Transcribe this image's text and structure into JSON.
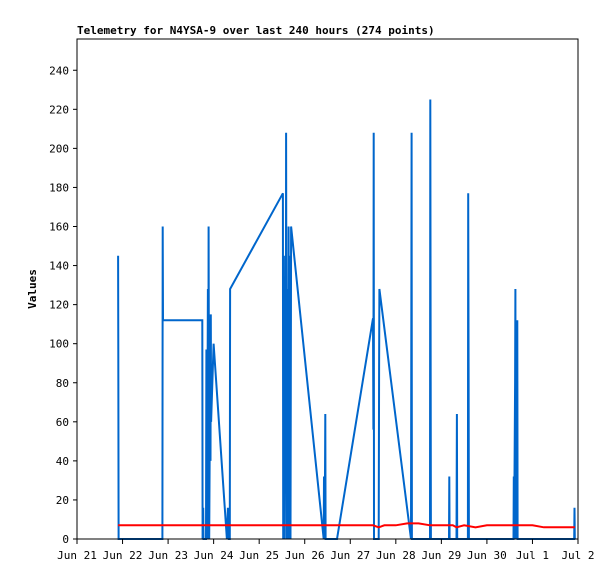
{
  "chart_data": {
    "type": "line",
    "title": "Telemetry for N4YSA-9 over last 240 hours (274 points)",
    "xlabel": "",
    "ylabel": "Values",
    "xlim": [
      "2024-06-21",
      "2024-07-02"
    ],
    "ylim": [
      0,
      256
    ],
    "grid": false,
    "legend": "none",
    "x_ticks": [
      {
        "date": "2024-06-21",
        "label": "Jun 21"
      },
      {
        "date": "2024-06-22",
        "label": "Jun 22"
      },
      {
        "date": "2024-06-23",
        "label": "Jun 23"
      },
      {
        "date": "2024-06-24",
        "label": "Jun 24"
      },
      {
        "date": "2024-06-25",
        "label": "Jun 25"
      },
      {
        "date": "2024-06-26",
        "label": "Jun 26"
      },
      {
        "date": "2024-06-27",
        "label": "Jun 27"
      },
      {
        "date": "2024-06-28",
        "label": "Jun 28"
      },
      {
        "date": "2024-06-29",
        "label": "Jun 29"
      },
      {
        "date": "2024-06-30",
        "label": "Jun 30"
      },
      {
        "date": "2024-07-01",
        "label": "Jul 1"
      },
      {
        "date": "2024-07-02",
        "label": "Jul 2"
      }
    ],
    "y_ticks": [
      0,
      20,
      40,
      60,
      80,
      100,
      120,
      140,
      160,
      180,
      200,
      220,
      240
    ],
    "series": [
      {
        "color": "#0066cc",
        "points": [
          [
            "2024-06-21 21:40",
            145
          ],
          [
            "2024-06-21 21:45",
            97
          ],
          [
            "2024-06-21 21:50",
            65
          ],
          [
            "2024-06-21 21:55",
            0
          ],
          [
            "2024-06-22 21:00",
            0
          ],
          [
            "2024-06-22 21:10",
            160
          ],
          [
            "2024-06-22 21:20",
            112
          ],
          [
            "2024-06-23 18:00",
            112
          ],
          [
            "2024-06-23 18:10",
            0
          ],
          [
            "2024-06-23 18:30",
            16
          ],
          [
            "2024-06-23 18:40",
            0
          ],
          [
            "2024-06-23 20:00",
            0
          ],
          [
            "2024-06-23 20:10",
            97
          ],
          [
            "2024-06-23 20:30",
            0
          ],
          [
            "2024-06-23 21:00",
            128
          ],
          [
            "2024-06-23 21:10",
            0
          ],
          [
            "2024-06-23 21:20",
            160
          ],
          [
            "2024-06-23 21:40",
            0
          ],
          [
            "2024-06-23 22:10",
            90
          ],
          [
            "2024-06-23 22:20",
            40
          ],
          [
            "2024-06-23 22:30",
            115
          ],
          [
            "2024-06-23 22:40",
            60
          ],
          [
            "2024-06-24 00:00",
            100
          ],
          [
            "2024-06-24 07:00",
            0
          ],
          [
            "2024-06-24 07:30",
            16
          ],
          [
            "2024-06-24 08:00",
            0
          ],
          [
            "2024-06-24 08:30",
            0
          ],
          [
            "2024-06-24 08:40",
            128
          ],
          [
            "2024-06-25 12:30",
            177
          ],
          [
            "2024-06-25 12:40",
            0
          ],
          [
            "2024-06-25 13:00",
            145
          ],
          [
            "2024-06-25 13:20",
            0
          ],
          [
            "2024-06-25 13:40",
            113
          ],
          [
            "2024-06-25 14:00",
            56
          ],
          [
            "2024-06-25 14:10",
            208
          ],
          [
            "2024-06-25 14:30",
            0
          ],
          [
            "2024-06-25 14:50",
            128
          ],
          [
            "2024-06-25 15:10",
            0
          ],
          [
            "2024-06-25 15:30",
            160
          ],
          [
            "2024-06-25 15:50",
            0
          ],
          [
            "2024-06-25 16:10",
            145
          ],
          [
            "2024-06-25 16:30",
            0
          ],
          [
            "2024-06-25 16:50",
            160
          ],
          [
            "2024-06-26 10:00",
            0
          ],
          [
            "2024-06-26 10:10",
            32
          ],
          [
            "2024-06-26 10:30",
            0
          ],
          [
            "2024-06-26 10:50",
            64
          ],
          [
            "2024-06-26 11:00",
            0
          ],
          [
            "2024-06-26 17:00",
            0
          ],
          [
            "2024-06-27 12:00",
            113
          ],
          [
            "2024-06-27 12:10",
            56
          ],
          [
            "2024-06-27 12:20",
            208
          ],
          [
            "2024-06-27 12:30",
            0
          ],
          [
            "2024-06-27 15:00",
            0
          ],
          [
            "2024-06-27 15:10",
            88
          ],
          [
            "2024-06-27 15:20",
            128
          ],
          [
            "2024-06-28 08:00",
            0
          ],
          [
            "2024-06-28 08:10",
            104
          ],
          [
            "2024-06-28 08:20",
            208
          ],
          [
            "2024-06-28 08:30",
            0
          ],
          [
            "2024-06-28 18:00",
            0
          ],
          [
            "2024-06-28 18:10",
            225
          ],
          [
            "2024-06-28 18:20",
            112
          ],
          [
            "2024-06-28 18:30",
            0
          ],
          [
            "2024-06-29 04:00",
            0
          ],
          [
            "2024-06-29 04:10",
            32
          ],
          [
            "2024-06-29 04:20",
            0
          ],
          [
            "2024-06-29 08:00",
            0
          ],
          [
            "2024-06-29 08:10",
            64
          ],
          [
            "2024-06-29 08:20",
            0
          ],
          [
            "2024-06-29 14:00",
            0
          ],
          [
            "2024-06-29 14:10",
            177
          ],
          [
            "2024-06-29 14:20",
            88
          ],
          [
            "2024-06-29 14:30",
            0
          ],
          [
            "2024-06-30 14:00",
            0
          ],
          [
            "2024-06-30 14:10",
            32
          ],
          [
            "2024-06-30 14:20",
            0
          ],
          [
            "2024-06-30 14:50",
            80
          ],
          [
            "2024-06-30 15:00",
            128
          ],
          [
            "2024-06-30 15:10",
            0
          ],
          [
            "2024-06-30 15:30",
            60
          ],
          [
            "2024-06-30 15:40",
            97
          ],
          [
            "2024-06-30 15:50",
            36
          ],
          [
            "2024-06-30 16:00",
            112
          ],
          [
            "2024-06-30 16:10",
            0
          ],
          [
            "2024-07-01 22:00",
            0
          ],
          [
            "2024-07-01 22:10",
            16
          ],
          [
            "2024-07-01 22:20",
            0
          ]
        ]
      },
      {
        "color": "#ff0000",
        "points": [
          [
            "2024-06-21 21:40",
            7
          ],
          [
            "2024-06-23 00:00",
            7
          ],
          [
            "2024-06-25 00:00",
            7
          ],
          [
            "2024-06-27 12:00",
            7
          ],
          [
            "2024-06-27 15:00",
            6
          ],
          [
            "2024-06-27 18:00",
            7
          ],
          [
            "2024-06-28 00:00",
            7
          ],
          [
            "2024-06-28 06:00",
            8
          ],
          [
            "2024-06-28 12:00",
            8
          ],
          [
            "2024-06-28 18:00",
            7
          ],
          [
            "2024-06-29 06:00",
            7
          ],
          [
            "2024-06-29 08:00",
            6
          ],
          [
            "2024-06-29 12:00",
            7
          ],
          [
            "2024-06-29 18:00",
            6
          ],
          [
            "2024-06-30 00:00",
            7
          ],
          [
            "2024-07-01 00:00",
            7
          ],
          [
            "2024-07-01 06:00",
            6
          ],
          [
            "2024-07-01 22:20",
            6
          ]
        ]
      }
    ]
  }
}
